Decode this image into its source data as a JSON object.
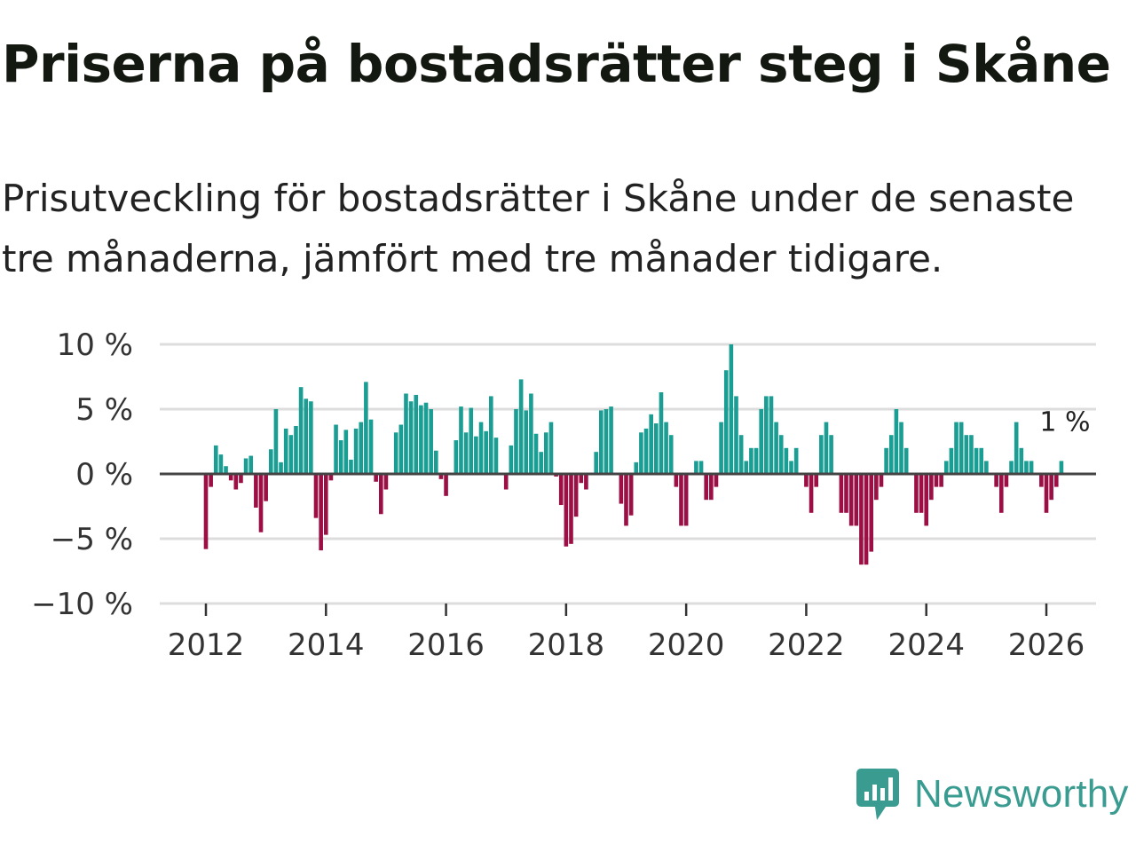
{
  "header": {
    "title": "Priserna på bostadsrätter steg i Skåne",
    "subtitle": "Prisutveckling för bostadsrätter i Skåne under de senaste tre månaderna, jämfört med tre månader tidigare."
  },
  "brand": {
    "name": "Newsworthy",
    "icon": "newsworthy-logo-icon",
    "color": "#3a9c91"
  },
  "colors": {
    "positive": "#1a9e94",
    "negative": "#9c0f45",
    "grid": "#dddddd",
    "zero": "#444444"
  },
  "chart_data": {
    "type": "bar",
    "title": "Priserna på bostadsrätter steg i Skåne",
    "subtitle": "Prisutveckling för bostadsrätter i Skåne under de senaste tre månaderna, jämfört med tre månader tidigare.",
    "xlabel": "",
    "ylabel": "",
    "x_start": "2012-01",
    "frequency": "monthly",
    "ylim": [
      -10,
      10
    ],
    "y_ticks": [
      10,
      5,
      0,
      -5,
      -10
    ],
    "y_tick_labels": [
      "10 %",
      "5 %",
      "0 %",
      "−5 %",
      "−10 %"
    ],
    "x_ticks": [
      2012,
      2014,
      2016,
      2018,
      2020,
      2022,
      2024,
      2026
    ],
    "x_tick_labels": [
      "2012",
      "2014",
      "2016",
      "2018",
      "2020",
      "2022",
      "2024",
      "2026"
    ],
    "last_value_label": "1 %",
    "values": [
      -5.8,
      -1.0,
      2.2,
      1.5,
      0.6,
      -0.5,
      -1.2,
      -0.7,
      1.2,
      1.4,
      -2.6,
      -4.5,
      -2.1,
      1.9,
      5.0,
      0.9,
      3.5,
      3.0,
      3.7,
      6.7,
      5.8,
      5.6,
      -3.4,
      -5.9,
      -4.7,
      -0.5,
      3.8,
      2.6,
      3.4,
      1.1,
      3.5,
      4.0,
      7.1,
      4.2,
      -0.6,
      -3.1,
      -1.2,
      0.0,
      3.2,
      3.8,
      6.2,
      5.6,
      6.1,
      5.3,
      5.5,
      5.0,
      1.8,
      -0.4,
      -1.7,
      0.0,
      2.6,
      5.2,
      3.2,
      5.1,
      2.9,
      4.0,
      3.3,
      6.0,
      2.8,
      0.0,
      -1.2,
      2.2,
      5.0,
      7.3,
      4.9,
      6.2,
      3.1,
      1.7,
      3.2,
      4.0,
      -0.2,
      -2.4,
      -5.6,
      -5.4,
      -3.3,
      -0.7,
      -1.2,
      0.0,
      1.7,
      4.9,
      5.0,
      5.2,
      0.0,
      -2.3,
      -4.0,
      -3.2,
      0.9,
      3.2,
      3.5,
      4.6,
      3.9,
      6.3,
      4.0,
      3.0,
      -1.0,
      -4.0,
      -4.0,
      0.0,
      1.0,
      1.0,
      -2.0,
      -2.0,
      -1.0,
      4.0,
      8.0,
      10.0,
      6.0,
      3.0,
      1.0,
      2.0,
      2.0,
      5.0,
      6.0,
      6.0,
      4.0,
      3.0,
      2.0,
      1.0,
      2.0,
      0.0,
      -1.0,
      -3.0,
      -1.0,
      3.0,
      4.0,
      3.0,
      0.0,
      -3.0,
      -3.0,
      -4.0,
      -4.0,
      -7.0,
      -7.0,
      -6.0,
      -2.0,
      -1.0,
      2.0,
      3.0,
      5.0,
      4.0,
      2.0,
      0.0,
      -3.0,
      -3.0,
      -4.0,
      -2.0,
      -1.0,
      -1.0,
      1.0,
      2.0,
      4.0,
      4.0,
      3.0,
      3.0,
      2.0,
      2.0,
      1.0,
      0.0,
      -1.0,
      -3.0,
      -1.0,
      1.0,
      4.0,
      2.0,
      1.0,
      1.0,
      0.0,
      -1.0,
      -3.0,
      -2.0,
      -1.0,
      1.0
    ]
  }
}
